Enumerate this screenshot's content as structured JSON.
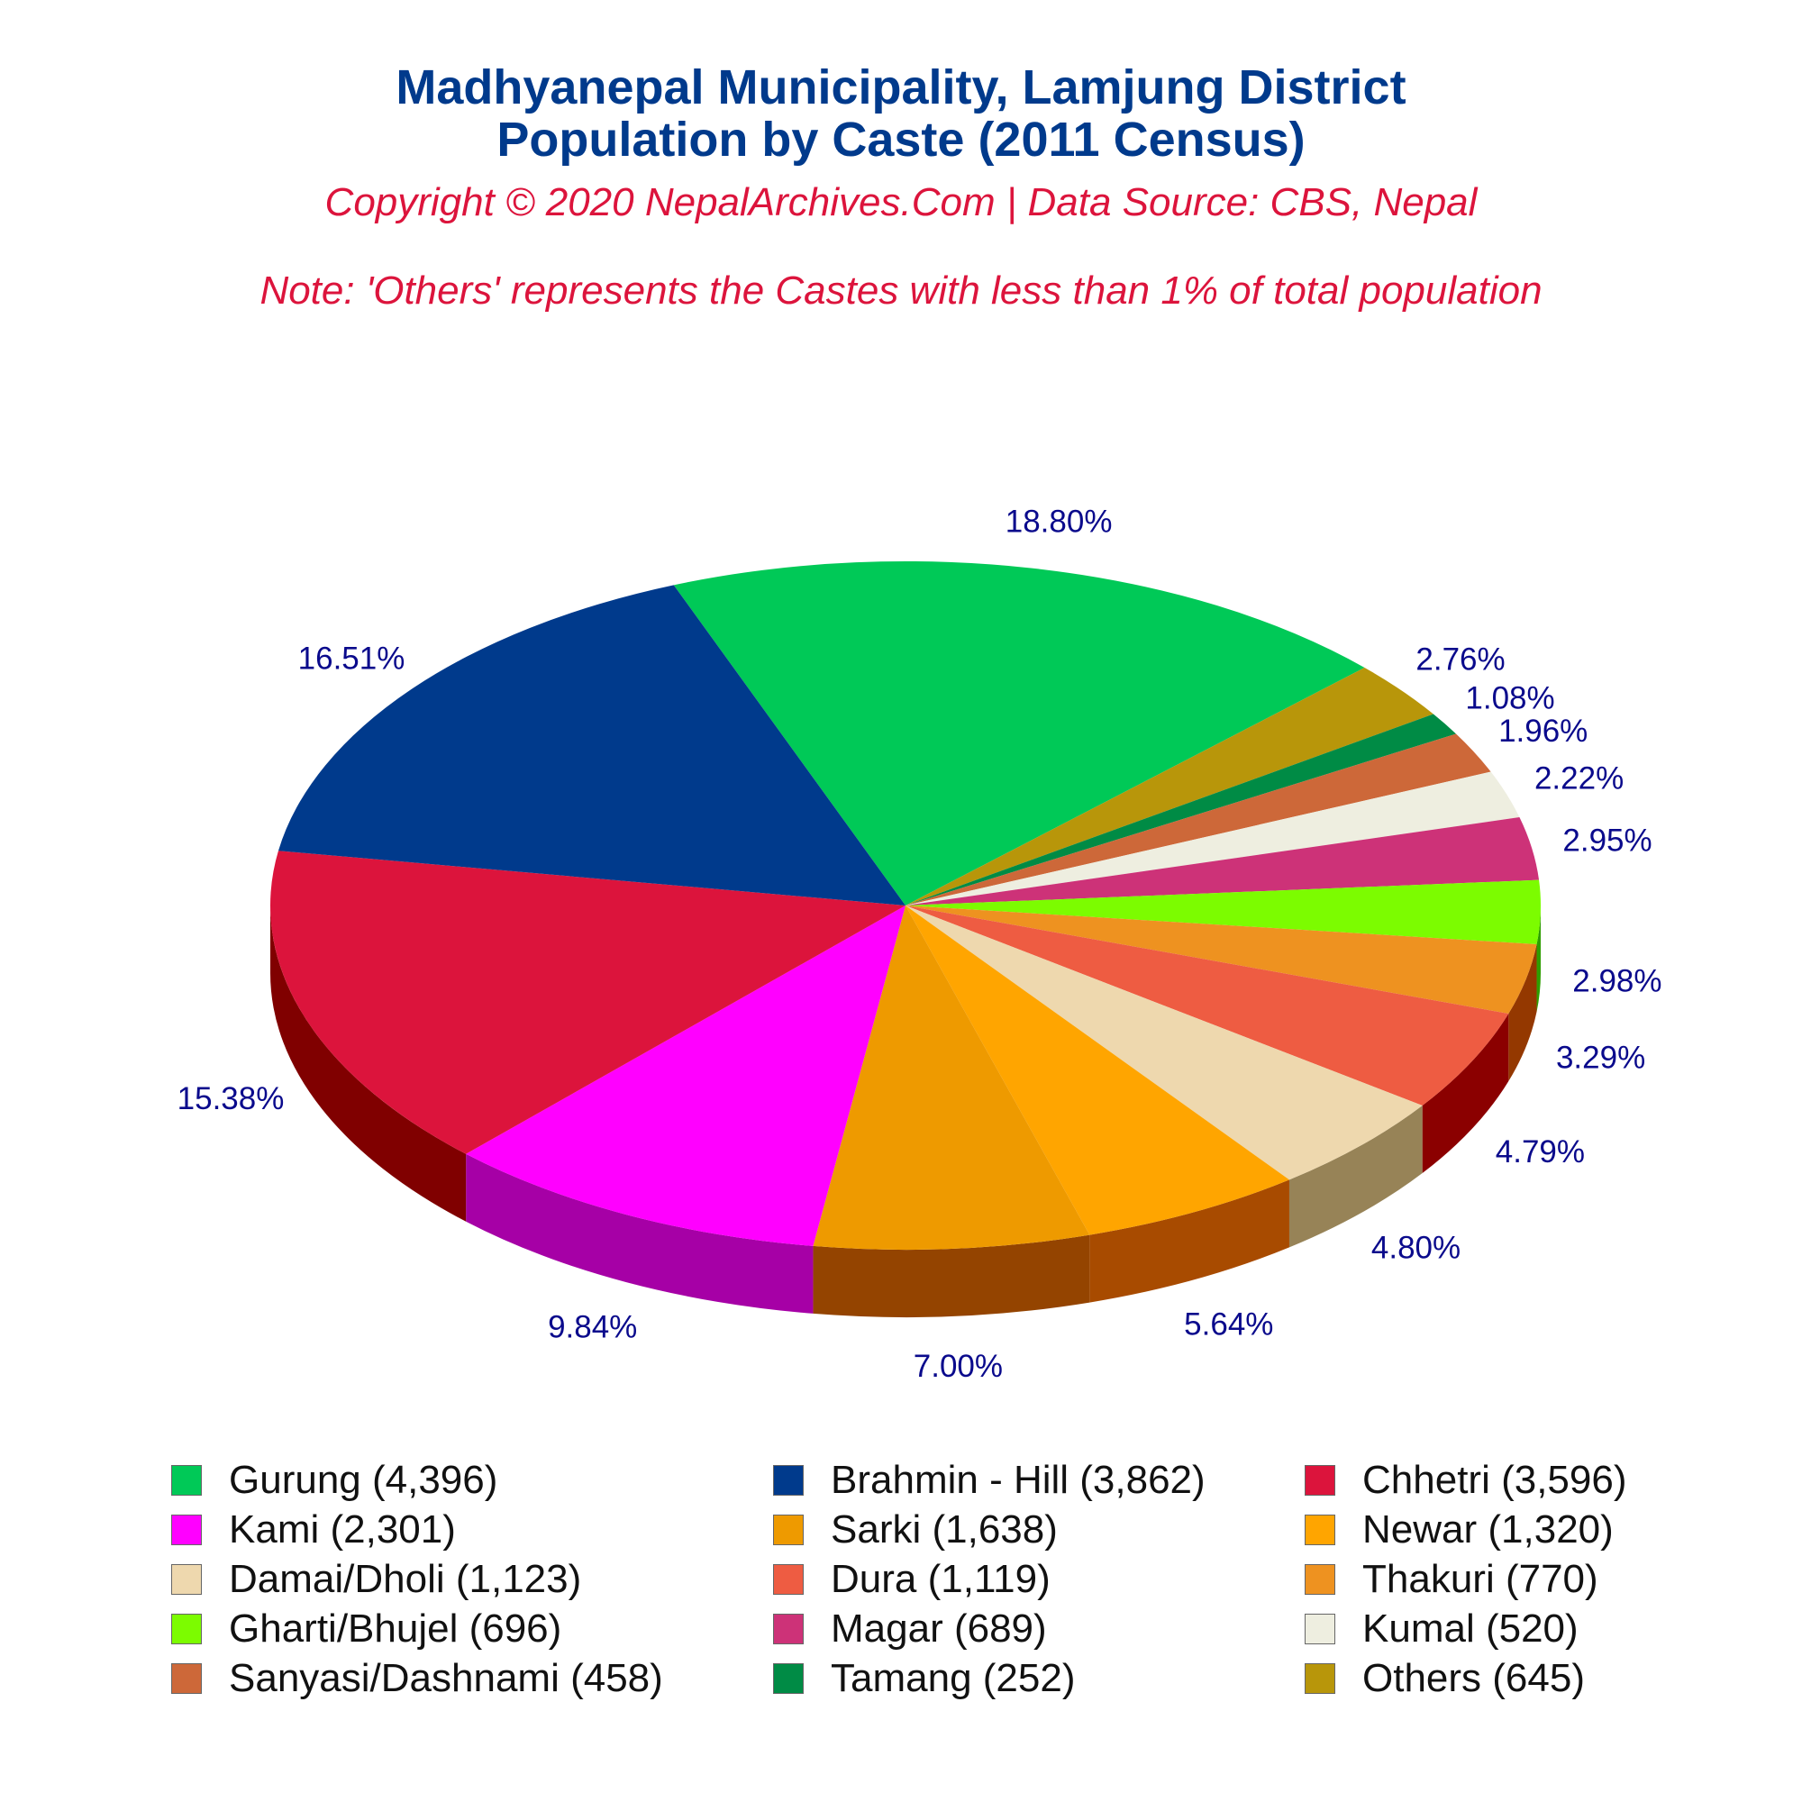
{
  "header": {
    "title_line1": "Madhyanepal Municipality, Lamjung District",
    "title_line2": "Population by Caste (2011 Census)",
    "copyright": "Copyright © 2020 NepalArchives.Com | Data Source: CBS, Nepal",
    "note": "Note: 'Others' represents the Castes with less than 1% of total population"
  },
  "chart_data": {
    "type": "pie",
    "title": "Madhyanepal Municipality, Lamjung District Population by Caste (2011 Census)",
    "legend_position": "bottom",
    "slices": [
      {
        "name": "Gurung",
        "value": 4396,
        "percent_label": "18.80%",
        "color": "#00c957",
        "side_color": "#008b3d",
        "legend_label": "Gurung (4,396)"
      },
      {
        "name": "Others",
        "value": 645,
        "percent_label": "2.76%",
        "color": "#b8960a",
        "side_color": "#7a6405",
        "legend_label": "Others (645)"
      },
      {
        "name": "Tamang",
        "value": 252,
        "percent_label": "1.08%",
        "color": "#008b45",
        "side_color": "#005a2c",
        "legend_label": "Tamang (252)"
      },
      {
        "name": "Sanyasi/Dashnami",
        "value": 458,
        "percent_label": "1.96%",
        "color": "#cd6839",
        "side_color": "#8b4726",
        "legend_label": "Sanyasi/Dashnami (458)"
      },
      {
        "name": "Kumal",
        "value": 520,
        "percent_label": "2.22%",
        "color": "#eeeee0",
        "side_color": "#a5a596",
        "legend_label": "Kumal (520)"
      },
      {
        "name": "Magar",
        "value": 689,
        "percent_label": "2.95%",
        "color": "#cd3278",
        "side_color": "#8b2252",
        "legend_label": "Magar (689)"
      },
      {
        "name": "Gharti/Bhujel",
        "value": 696,
        "percent_label": "2.98%",
        "color": "#7cfc00",
        "side_color": "#2e9e00",
        "legend_label": "Gharti/Bhujel (696)"
      },
      {
        "name": "Thakuri",
        "value": 770,
        "percent_label": "3.29%",
        "color": "#ee9220",
        "side_color": "#943800",
        "legend_label": "Thakuri (770)"
      },
      {
        "name": "Dura",
        "value": 1119,
        "percent_label": "4.79%",
        "color": "#ee5c42",
        "side_color": "#8b0000",
        "legend_label": "Dura (1,119)"
      },
      {
        "name": "Damai/Dholi",
        "value": 1123,
        "percent_label": "4.80%",
        "color": "#eed8ae",
        "side_color": "#978357",
        "legend_label": "Damai/Dholi (1,123)"
      },
      {
        "name": "Newar",
        "value": 1320,
        "percent_label": "5.64%",
        "color": "#ffa500",
        "side_color": "#a84b00",
        "legend_label": "Newar (1,320)"
      },
      {
        "name": "Sarki",
        "value": 1638,
        "percent_label": "7.00%",
        "color": "#ee9a00",
        "side_color": "#944400",
        "legend_label": "Sarki (1,638)"
      },
      {
        "name": "Kami",
        "value": 2301,
        "percent_label": "9.84%",
        "color": "#ff00ff",
        "side_color": "#a600a6",
        "legend_label": "Kami (2,301)"
      },
      {
        "name": "Chhetri",
        "value": 3596,
        "percent_label": "15.38%",
        "color": "#dc143c",
        "side_color": "#800000",
        "legend_label": "Chhetri (3,596)"
      },
      {
        "name": "Brahmin - Hill",
        "value": 3862,
        "percent_label": "16.51%",
        "color": "#003a8c",
        "side_color": "#00245a",
        "legend_label": "Brahmin - Hill (3,862)"
      }
    ],
    "legend_order": [
      "Gurung",
      "Brahmin - Hill",
      "Chhetri",
      "Kami",
      "Sarki",
      "Newar",
      "Damai/Dholi",
      "Dura",
      "Thakuri",
      "Gharti/Bhujel",
      "Magar",
      "Kumal",
      "Sanyasi/Dashnami",
      "Tamang",
      "Others"
    ]
  }
}
